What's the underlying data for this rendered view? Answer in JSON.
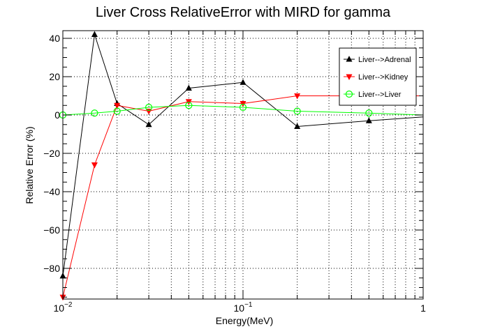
{
  "chart_data": {
    "type": "line",
    "title": "Liver Cross RelativeError with MIRD for gamma",
    "xlabel": "Energy(MeV)",
    "ylabel": "Relative Error (%)",
    "x_scale": "log",
    "xlim": [
      0.01,
      1
    ],
    "ylim": [
      -96,
      44
    ],
    "grid": true,
    "legend_position": "top-right",
    "x_ticks": [
      {
        "value": 0.01,
        "base": "10",
        "exp": "−2"
      },
      {
        "value": 0.1,
        "base": "10",
        "exp": "−1"
      },
      {
        "value": 1,
        "base": "1",
        "exp": ""
      }
    ],
    "y_ticks": [
      -80,
      -60,
      -40,
      -20,
      0,
      20,
      40
    ],
    "x": [
      0.01,
      0.015,
      0.02,
      0.03,
      0.05,
      0.1,
      0.2,
      0.5,
      1
    ],
    "series": [
      {
        "name": "Liver-->Adrenal",
        "color": "#000000",
        "marker": "triangle-up",
        "values": [
          -84,
          42,
          6,
          -5,
          14,
          17,
          -6,
          -3,
          -1
        ]
      },
      {
        "name": "Liver-->Kidney",
        "color": "#ff0000",
        "marker": "triangle-down",
        "values": [
          -95,
          -26,
          5,
          2,
          7,
          6,
          10,
          10,
          10
        ]
      },
      {
        "name": "Liver-->Liver",
        "color": "#00ff00",
        "marker": "circle-open",
        "values": [
          0,
          1,
          2,
          4,
          5,
          4,
          2,
          1,
          0
        ]
      }
    ]
  }
}
